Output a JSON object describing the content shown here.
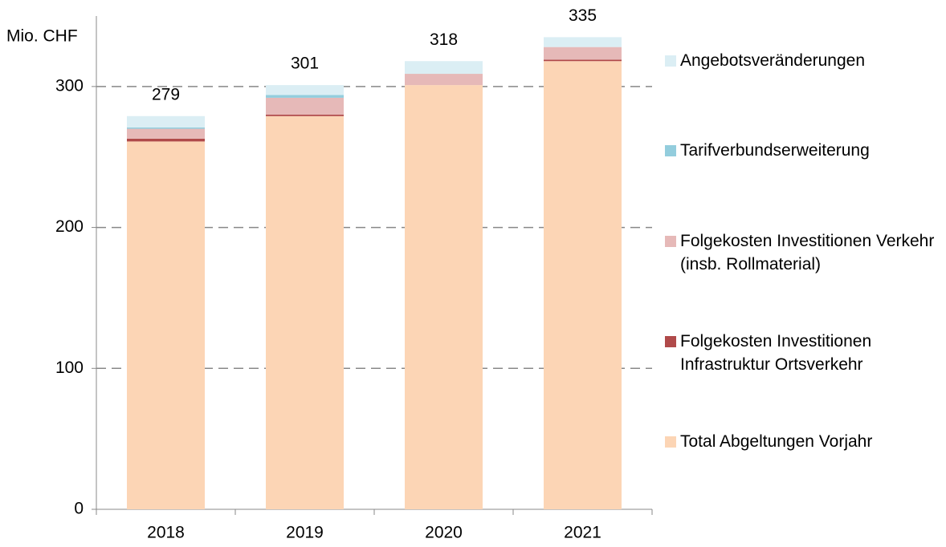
{
  "chart_data": {
    "type": "stacked_bar",
    "y_label": "Mio. CHF",
    "categories": [
      "2018",
      "2019",
      "2020",
      "2021"
    ],
    "series": [
      {
        "name": "Total Abgeltungen Vorjahr",
        "color": "#fcd5b5",
        "values": [
          261,
          279,
          301,
          318
        ]
      },
      {
        "name": "Folgekosten Investitionen Infrastruktur Ortsverkehr",
        "color": "#b04a4a",
        "values": [
          2,
          1,
          0,
          1
        ]
      },
      {
        "name": "Folgekosten Investitionen Verkehr (insb. Rollmaterial)",
        "color": "#e6b9b8",
        "values": [
          7,
          12,
          8,
          9
        ]
      },
      {
        "name": "Tarifverbundserweiterung",
        "color": "#93cddd",
        "values": [
          1,
          2,
          0,
          0
        ]
      },
      {
        "name": "Angebotsveränderungen",
        "color": "#dbeef4",
        "values": [
          8,
          7,
          9,
          7
        ]
      }
    ],
    "totals": [
      279,
      301,
      318,
      335
    ],
    "ylim": [
      0,
      350
    ],
    "yticks": [
      0,
      100,
      200,
      300
    ],
    "grid": true
  }
}
